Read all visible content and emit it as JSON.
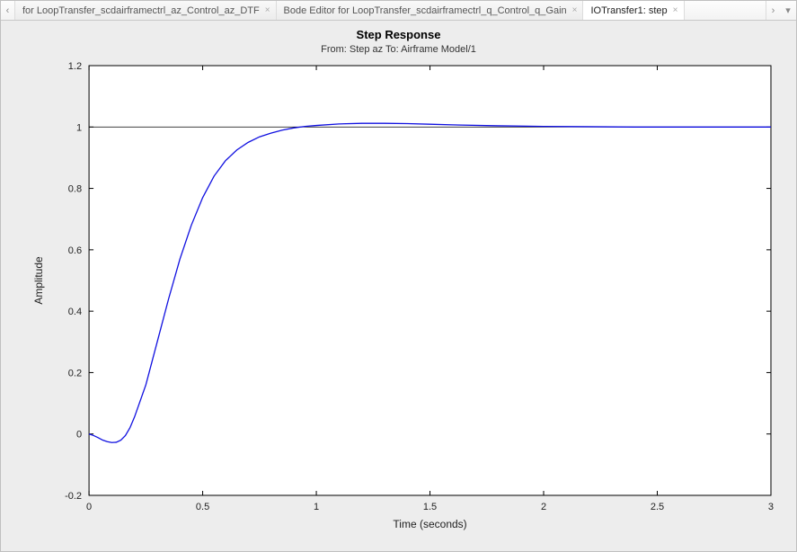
{
  "tabs": {
    "prev_icon": "‹",
    "next_icon": "›",
    "menu_icon": "▾",
    "items": [
      {
        "label": "for LoopTransfer_scdairframectrl_az_Control_az_DTF",
        "active": false
      },
      {
        "label": "Bode Editor for LoopTransfer_scdairframectrl_q_Control_q_Gain",
        "active": false
      },
      {
        "label": "IOTransfer1: step",
        "active": true
      }
    ],
    "close_glyph": "×"
  },
  "chart": {
    "type": "line",
    "title": "Step Response",
    "subtitle": "From: Step az  To: Airframe Model/1",
    "xlabel": "Time (seconds)",
    "ylabel": "Amplitude",
    "xlim": [
      0,
      3
    ],
    "ylim": [
      -0.2,
      1.2
    ],
    "xtick_step": 0.5,
    "ytick_step": 0.2,
    "xticks": [
      0,
      0.5,
      1,
      1.5,
      2,
      2.5,
      3
    ],
    "yticks": [
      -0.2,
      0,
      0.2,
      0.4,
      0.6,
      0.8,
      1,
      1.2
    ],
    "background_color": "#ffffff",
    "panel_bg": "#ededed",
    "axis_color": "#000000",
    "ref_y": 1.0,
    "series": {
      "color": "#1010e0",
      "linewidth": 1.3,
      "x": [
        0,
        0.02,
        0.04,
        0.06,
        0.08,
        0.1,
        0.12,
        0.14,
        0.16,
        0.18,
        0.2,
        0.25,
        0.3,
        0.35,
        0.4,
        0.45,
        0.5,
        0.55,
        0.6,
        0.65,
        0.7,
        0.75,
        0.8,
        0.85,
        0.9,
        0.95,
        1.0,
        1.1,
        1.2,
        1.3,
        1.4,
        1.5,
        1.6,
        1.8,
        2.0,
        2.2,
        2.4,
        2.6,
        2.8,
        3.0
      ],
      "y": [
        0,
        -0.005,
        -0.012,
        -0.02,
        -0.025,
        -0.028,
        -0.027,
        -0.02,
        -0.005,
        0.02,
        0.055,
        0.16,
        0.3,
        0.44,
        0.57,
        0.68,
        0.77,
        0.84,
        0.89,
        0.925,
        0.95,
        0.968,
        0.98,
        0.99,
        0.997,
        1.002,
        1.005,
        1.01,
        1.012,
        1.012,
        1.011,
        1.009,
        1.007,
        1.004,
        1.002,
        1.001,
        1.0,
        1.0,
        1.0,
        1.0
      ]
    }
  }
}
